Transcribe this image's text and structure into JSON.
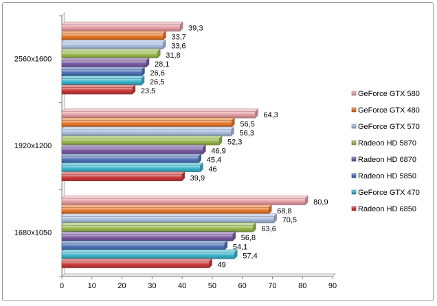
{
  "chart_data": {
    "type": "bar",
    "orientation": "horizontal",
    "categories": [
      "2560x1600",
      "1920x1200",
      "1680x1050"
    ],
    "series": [
      {
        "name": "GeForce GTX 580",
        "color": "#e6a0a6",
        "values": [
          39.3,
          64.3,
          80.9
        ],
        "labels": [
          "39,3",
          "64,3",
          "80,9"
        ]
      },
      {
        "name": "GeForce GTX 480",
        "color": "#e7782b",
        "values": [
          33.7,
          56.5,
          68.8
        ],
        "labels": [
          "33,7",
          "56,5",
          "68,8"
        ]
      },
      {
        "name": "GeForce GTX 570",
        "color": "#a9bde0",
        "values": [
          33.6,
          56.3,
          70.5
        ],
        "labels": [
          "33,6",
          "56,3",
          "70,5"
        ]
      },
      {
        "name": "Radeon HD 5870",
        "color": "#98bb4f",
        "values": [
          31.8,
          52.3,
          63.6
        ],
        "labels": [
          "31,8",
          "52,3",
          "63,6"
        ]
      },
      {
        "name": "Radeon HD 6870",
        "color": "#7b5ca3",
        "values": [
          28.1,
          46.9,
          56.8
        ],
        "labels": [
          "28,1",
          "46,9",
          "56,8"
        ]
      },
      {
        "name": "Radeon HD 5850",
        "color": "#4f73b8",
        "values": [
          26.6,
          45.4,
          54.1
        ],
        "labels": [
          "26,6",
          "45,4",
          "54,1"
        ]
      },
      {
        "name": "GeForce GTX 470",
        "color": "#3ab5cc",
        "values": [
          26.5,
          46,
          57.4
        ],
        "labels": [
          "26,5",
          "46",
          "57,4"
        ]
      },
      {
        "name": "Radeon HD 6850",
        "color": "#cc3a3a",
        "values": [
          23.5,
          39.9,
          49
        ],
        "labels": [
          "23,5",
          "39,9",
          "49"
        ]
      }
    ],
    "xlim": [
      0,
      90
    ],
    "xticks": [
      "0",
      "10",
      "20",
      "30",
      "40",
      "50",
      "60",
      "70",
      "80",
      "90"
    ],
    "grid": false,
    "legend_position": "right"
  }
}
